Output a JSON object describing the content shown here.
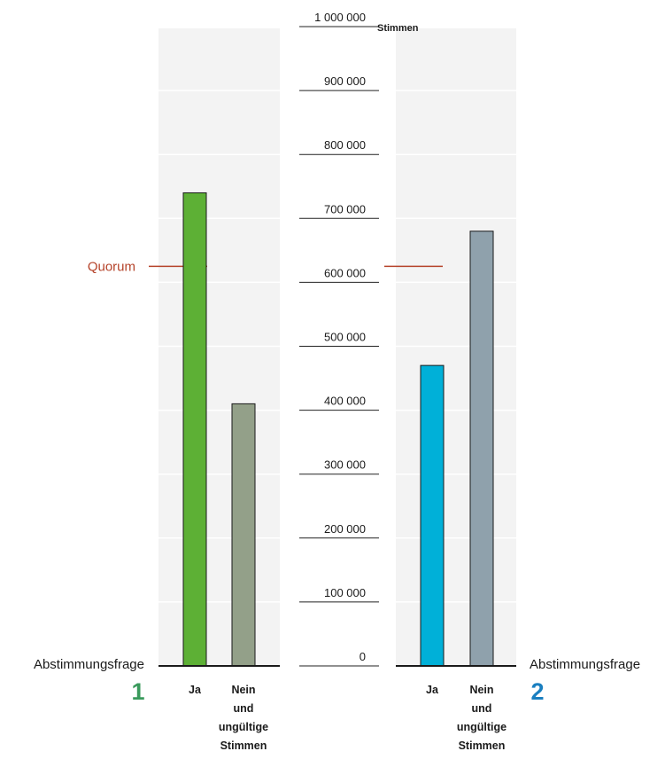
{
  "chart_data": {
    "type": "bar",
    "unit": "Stimmen",
    "ylim": [
      0,
      1000000
    ],
    "yticks": [
      "0",
      "100 000",
      "200 000",
      "300 000",
      "400 000",
      "500 000",
      "600 000",
      "700 000",
      "800 000",
      "900 000",
      "1 000 000"
    ],
    "ytick_values": [
      0,
      100000,
      200000,
      300000,
      400000,
      500000,
      600000,
      700000,
      800000,
      900000,
      1000000
    ],
    "quorum": {
      "label": "Quorum",
      "value": 625000,
      "color": "#b5432a"
    },
    "questions": [
      {
        "label": "Abstimmungsfrage",
        "number": "1",
        "number_color": "#3a9a5c",
        "categories": [
          {
            "lines": [
              "Ja"
            ],
            "value": 740000,
            "color": "#5db035"
          },
          {
            "lines": [
              "Nein",
              "und",
              "ungültige",
              "Stimmen"
            ],
            "value": 410000,
            "color": "#93a089"
          }
        ]
      },
      {
        "label": "Abstimmungsfrage",
        "number": "2",
        "number_color": "#1a7fc0",
        "categories": [
          {
            "lines": [
              "Ja"
            ],
            "value": 470000,
            "color": "#00b0d8"
          },
          {
            "lines": [
              "Nein",
              "und",
              "ungültige",
              "Stimmen"
            ],
            "value": 680000,
            "color": "#8fa1ac"
          }
        ]
      }
    ]
  }
}
